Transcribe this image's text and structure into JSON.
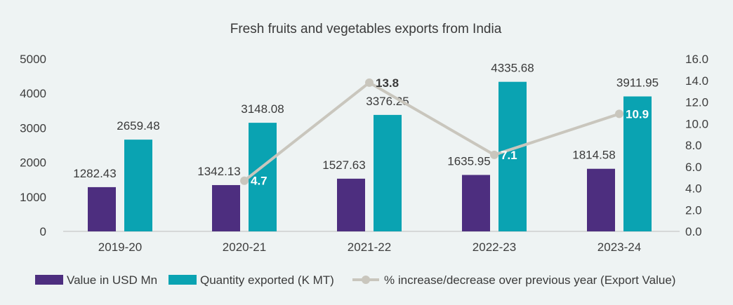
{
  "chart_data": {
    "type": "bar",
    "title": "Fresh fruits and vegetables exports from India",
    "categories": [
      "2019-20",
      "2020-21",
      "2021-22",
      "2022-23",
      "2023-24"
    ],
    "y_left": {
      "min": 0,
      "max": 5000,
      "ticks": [
        "0",
        "1000",
        "2000",
        "3000",
        "4000",
        "5000"
      ]
    },
    "y_right": {
      "min": 0,
      "max": 16,
      "ticks": [
        "0.0",
        "2.0",
        "4.0",
        "6.0",
        "8.0",
        "10.0",
        "12.0",
        "14.0",
        "16.0"
      ]
    },
    "series": [
      {
        "name": "Value in USD Mn",
        "type": "bar",
        "axis": "left",
        "color": "#4d2e7f",
        "values": [
          1282.43,
          1342.13,
          1527.63,
          1635.95,
          1814.58
        ],
        "labels": [
          "1282.43",
          "1342.13",
          "1527.63",
          "1635.95",
          "1814.58"
        ]
      },
      {
        "name": "Quantity exported (K MT)",
        "type": "bar",
        "axis": "left",
        "color": "#0aa3b2",
        "values": [
          2659.48,
          3148.08,
          3376.25,
          4335.68,
          3911.95
        ],
        "labels": [
          "2659.48",
          "3148.08",
          "3376.25",
          "4335.68",
          "3911.95"
        ]
      },
      {
        "name": "% increase/decrease over previous year (Export Value)",
        "type": "line",
        "axis": "right",
        "color": "#c9c6bd",
        "x": [
          "2020-21",
          "2021-22",
          "2022-23",
          "2023-24"
        ],
        "values": [
          4.7,
          13.8,
          7.1,
          10.9
        ],
        "labels": [
          "4.7",
          "13.8",
          "7.1",
          "10.9"
        ]
      }
    ],
    "legend": "bottom",
    "grid": false
  }
}
